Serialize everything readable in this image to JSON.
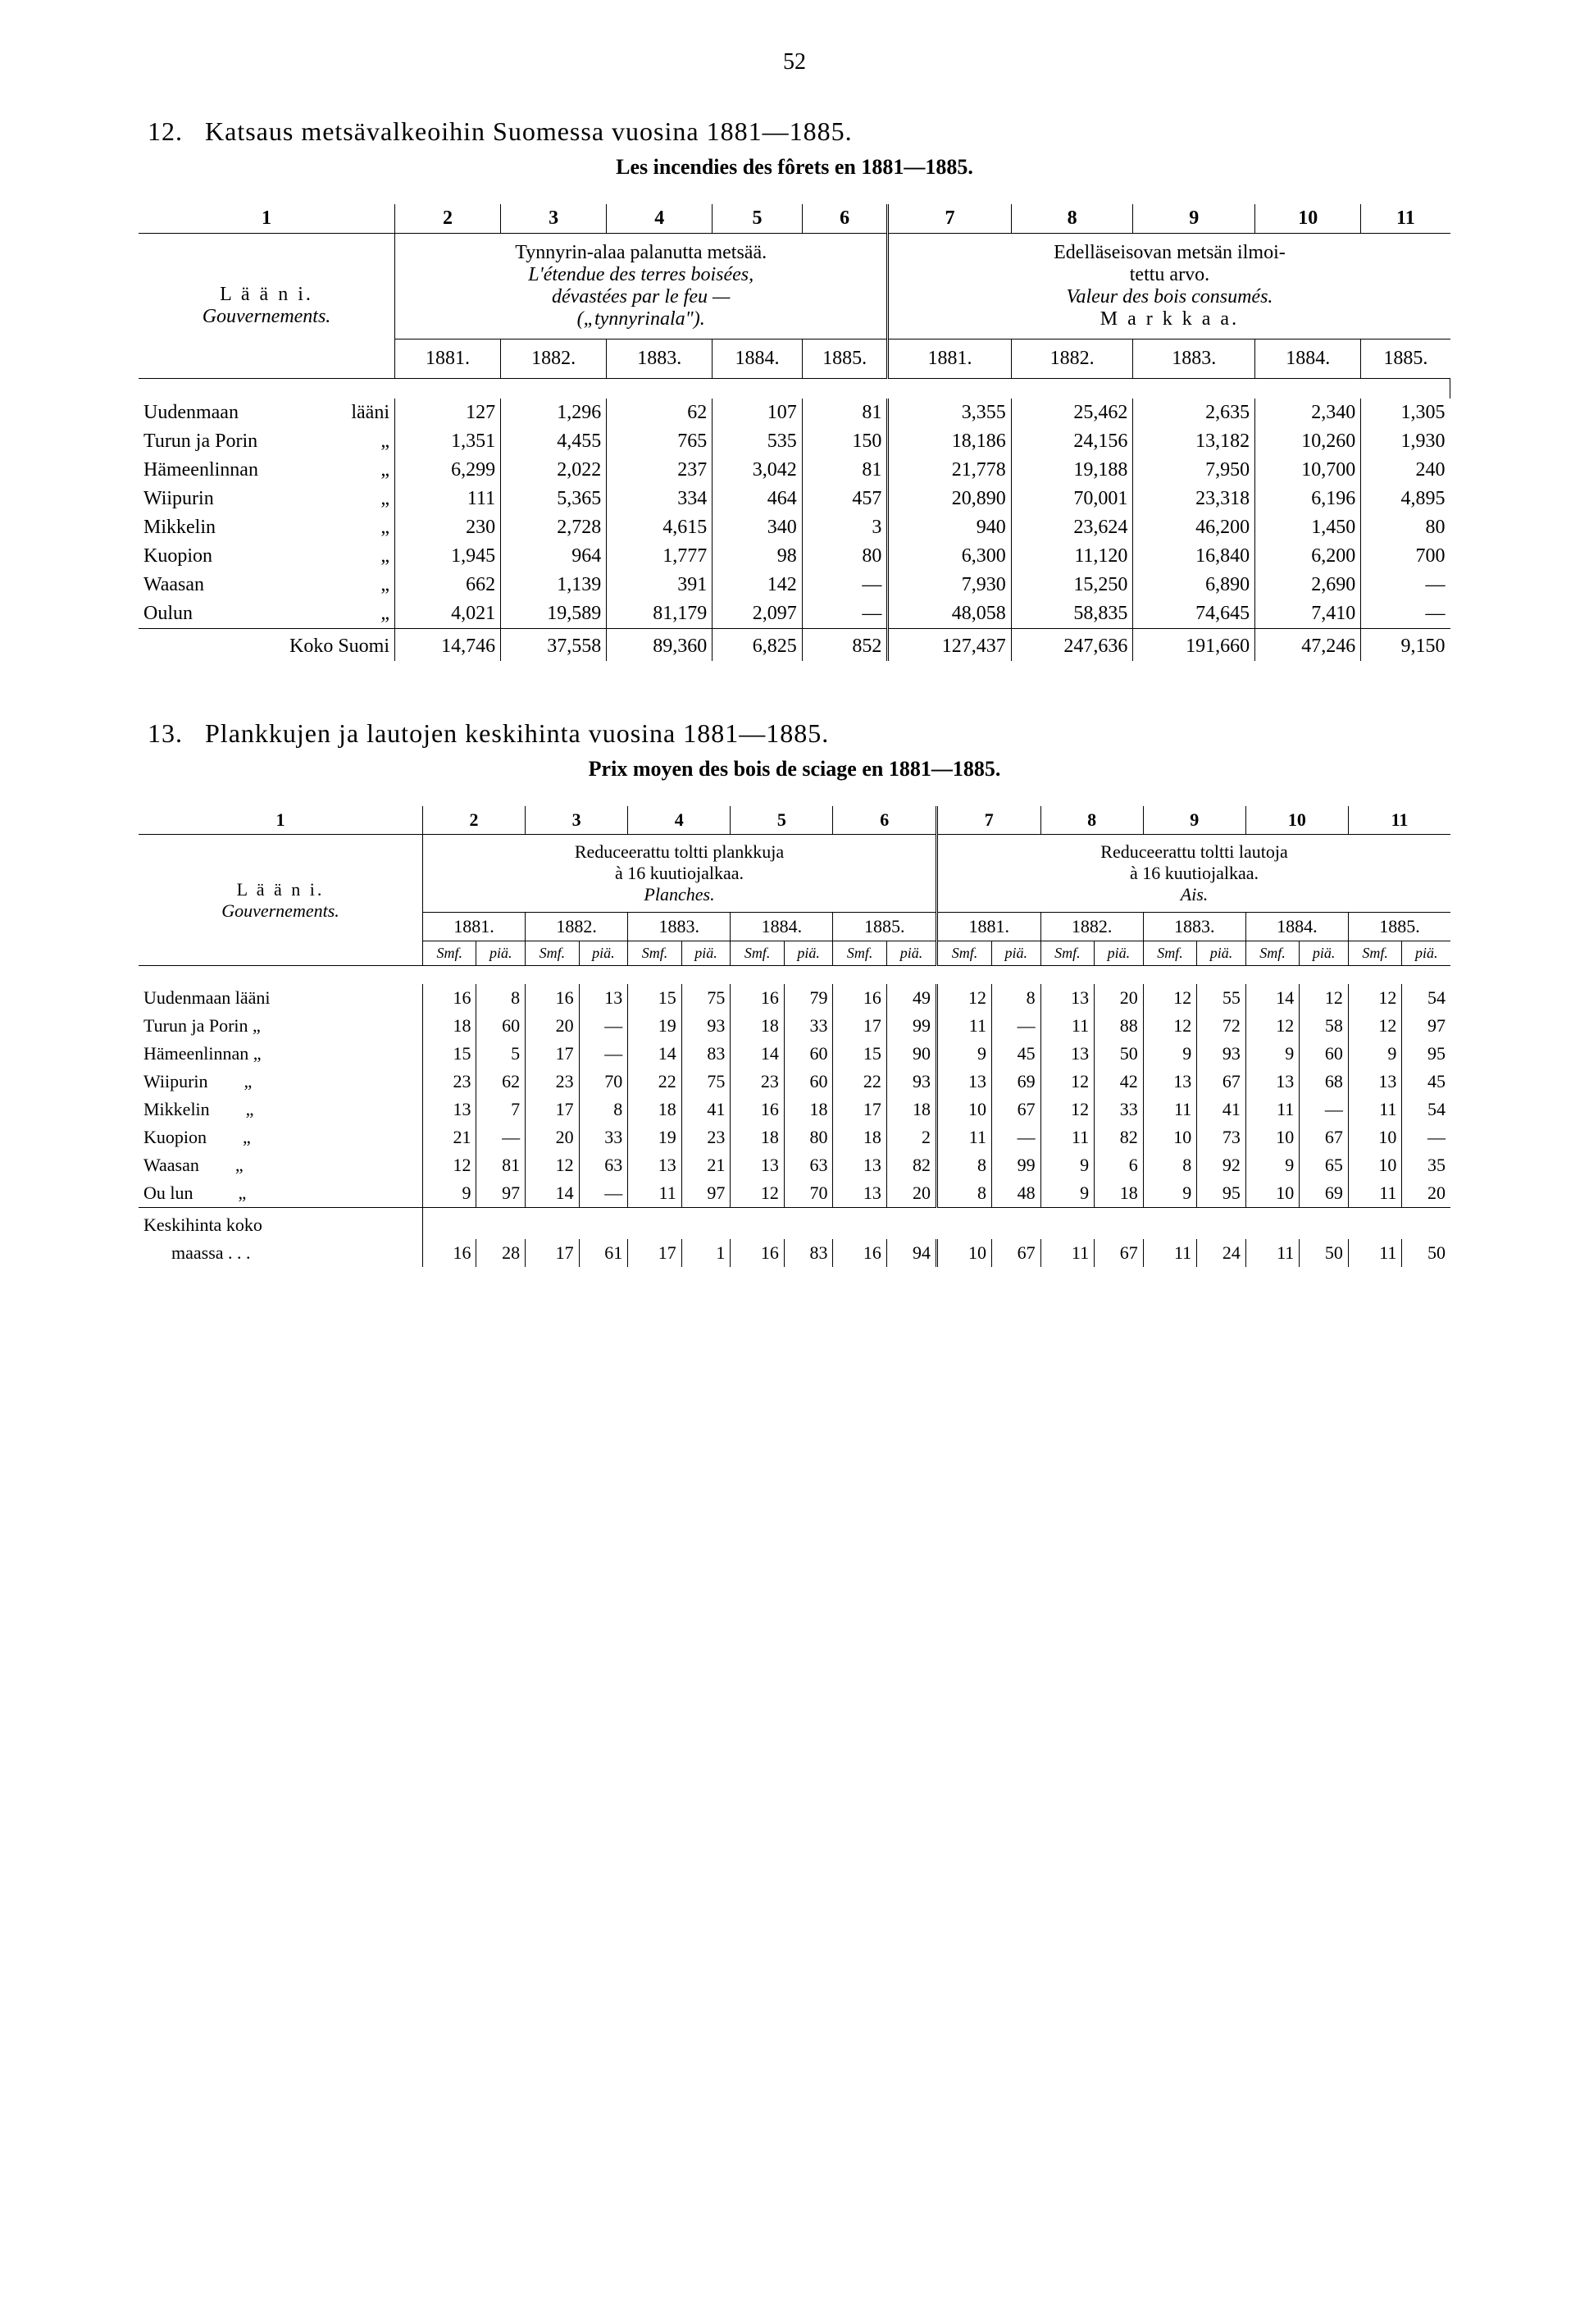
{
  "page_number": "52",
  "section12": {
    "number": "12.",
    "title": "Katsaus metsävalkeoihin Suomessa vuosina 1881—1885.",
    "subtitle": "Les incendies des fôrets en 1881—1885.",
    "col_label": "1",
    "row_header_fi": "L ä ä n i.",
    "row_header_fr": "Gouvernements.",
    "group1_fi": "Tynnyrin-alaa palanutta metsää.",
    "group1_fr1": "L'étendue des terres boisées,",
    "group1_fr2": "dévastées par le feu —",
    "group1_fr3": "(„tynnyrinala\").",
    "group2_fi1": "Edelläseisovan metsän ilmoi-",
    "group2_fi2": "tettu arvo.",
    "group2_fr": "Valeur des bois consumés.",
    "group2_unit": "M a r k k a a.",
    "colnums": [
      "2",
      "3",
      "4",
      "5",
      "6",
      "7",
      "8",
      "9",
      "10",
      "11"
    ],
    "years": [
      "1881.",
      "1882.",
      "1883.",
      "1884.",
      "1885.",
      "1881.",
      "1882.",
      "1883.",
      "1884.",
      "1885."
    ],
    "rows": [
      {
        "name": "Uudenmaan",
        "suffix": "lääni",
        "v": [
          "127",
          "1,296",
          "62",
          "107",
          "81",
          "3,355",
          "25,462",
          "2,635",
          "2,340",
          "1,305"
        ]
      },
      {
        "name": "Turun ja Porin",
        "suffix": "„",
        "v": [
          "1,351",
          "4,455",
          "765",
          "535",
          "150",
          "18,186",
          "24,156",
          "13,182",
          "10,260",
          "1,930"
        ]
      },
      {
        "name": "Hämeenlinnan",
        "suffix": "„",
        "v": [
          "6,299",
          "2,022",
          "237",
          "3,042",
          "81",
          "21,778",
          "19,188",
          "7,950",
          "10,700",
          "240"
        ]
      },
      {
        "name": "Wiipurin",
        "suffix": "„",
        "v": [
          "111",
          "5,365",
          "334",
          "464",
          "457",
          "20,890",
          "70,001",
          "23,318",
          "6,196",
          "4,895"
        ]
      },
      {
        "name": "Mikkelin",
        "suffix": "„",
        "v": [
          "230",
          "2,728",
          "4,615",
          "340",
          "3",
          "940",
          "23,624",
          "46,200",
          "1,450",
          "80"
        ]
      },
      {
        "name": "Kuopion",
        "suffix": "„",
        "v": [
          "1,945",
          "964",
          "1,777",
          "98",
          "80",
          "6,300",
          "11,120",
          "16,840",
          "6,200",
          "700"
        ]
      },
      {
        "name": "Waasan",
        "suffix": "„",
        "v": [
          "662",
          "1,139",
          "391",
          "142",
          "—",
          "7,930",
          "15,250",
          "6,890",
          "2,690",
          "—"
        ]
      },
      {
        "name": "Oulun",
        "suffix": "„",
        "v": [
          "4,021",
          "19,589",
          "81,179",
          "2,097",
          "—",
          "48,058",
          "58,835",
          "74,645",
          "7,410",
          "—"
        ]
      }
    ],
    "total_label": "Koko Suomi",
    "total": [
      "14,746",
      "37,558",
      "89,360",
      "6,825",
      "852",
      "127,437",
      "247,636",
      "191,660",
      "47,246",
      "9,150"
    ]
  },
  "section13": {
    "number": "13.",
    "title": "Plankkujen ja lautojen keskihinta vuosina 1881—1885.",
    "subtitle": "Prix moyen des bois de sciage en 1881—1885.",
    "col_label": "1",
    "row_header_fi": "L ä ä n i.",
    "row_header_fr": "Gouvernements.",
    "group1_l1": "Reduceerattu toltti plankkuja",
    "group1_l2": "à 16 kuutiojalkaa.",
    "group1_l3": "Planches.",
    "group2_l1": "Reduceerattu toltti lautoja",
    "group2_l2": "à 16 kuutiojalkaa.",
    "group2_l3": "Ais.",
    "colnums": [
      "2",
      "3",
      "4",
      "5",
      "6",
      "7",
      "8",
      "9",
      "10",
      "11"
    ],
    "years": [
      "1881.",
      "1882.",
      "1883.",
      "1884.",
      "1885.",
      "1881.",
      "1882.",
      "1883.",
      "1884.",
      "1885."
    ],
    "unit_a": "Smf.",
    "unit_b": "piä.",
    "rows": [
      {
        "name": "Uudenmaan lääni",
        "v": [
          "16",
          "8",
          "16",
          "13",
          "15",
          "75",
          "16",
          "79",
          "16",
          "49",
          "12",
          "8",
          "13",
          "20",
          "12",
          "55",
          "14",
          "12",
          "12",
          "54"
        ]
      },
      {
        "name": "Turun ja Porin „",
        "v": [
          "18",
          "60",
          "20",
          "—",
          "19",
          "93",
          "18",
          "33",
          "17",
          "99",
          "11",
          "—",
          "11",
          "88",
          "12",
          "72",
          "12",
          "58",
          "12",
          "97"
        ]
      },
      {
        "name": "Hämeenlinnan „",
        "v": [
          "15",
          "5",
          "17",
          "—",
          "14",
          "83",
          "14",
          "60",
          "15",
          "90",
          "9",
          "45",
          "13",
          "50",
          "9",
          "93",
          "9",
          "60",
          "9",
          "95"
        ]
      },
      {
        "name": "Wiipurin        „",
        "v": [
          "23",
          "62",
          "23",
          "70",
          "22",
          "75",
          "23",
          "60",
          "22",
          "93",
          "13",
          "69",
          "12",
          "42",
          "13",
          "67",
          "13",
          "68",
          "13",
          "45"
        ]
      },
      {
        "name": "Mikkelin        „",
        "v": [
          "13",
          "7",
          "17",
          "8",
          "18",
          "41",
          "16",
          "18",
          "17",
          "18",
          "10",
          "67",
          "12",
          "33",
          "11",
          "41",
          "11",
          "—",
          "11",
          "54"
        ]
      },
      {
        "name": "Kuopion        „",
        "v": [
          "21",
          "—",
          "20",
          "33",
          "19",
          "23",
          "18",
          "80",
          "18",
          "2",
          "11",
          "—",
          "11",
          "82",
          "10",
          "73",
          "10",
          "67",
          "10",
          "—"
        ]
      },
      {
        "name": "Waasan        „",
        "v": [
          "12",
          "81",
          "12",
          "63",
          "13",
          "21",
          "13",
          "63",
          "13",
          "82",
          "8",
          "99",
          "9",
          "6",
          "8",
          "92",
          "9",
          "65",
          "10",
          "35"
        ]
      },
      {
        "name": "Ou lun          „",
        "v": [
          "9",
          "97",
          "14",
          "—",
          "11",
          "97",
          "12",
          "70",
          "13",
          "20",
          "8",
          "48",
          "9",
          "18",
          "9",
          "95",
          "10",
          "69",
          "11",
          "20"
        ]
      }
    ],
    "total_label1": "Keskihinta   koko",
    "total_label2": "maassa   .   .   .",
    "total": [
      "16",
      "28",
      "17",
      "61",
      "17",
      "1",
      "16",
      "83",
      "16",
      "94",
      "10",
      "67",
      "11",
      "67",
      "11",
      "24",
      "11",
      "50",
      "11",
      "50"
    ]
  }
}
